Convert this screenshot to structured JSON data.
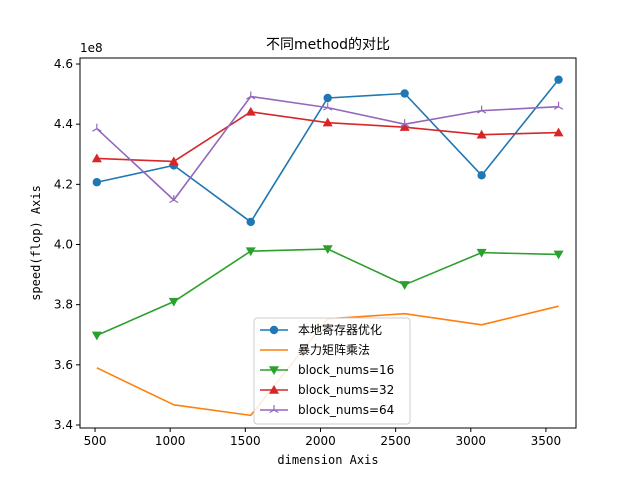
{
  "chart_data": {
    "type": "line",
    "title": "不同method的对比",
    "xlabel": "dimension Axis",
    "ylabel": "speed(flop) Axis",
    "y_offset_text": "1e8",
    "x": [
      512,
      1024,
      1536,
      2048,
      2560,
      3072,
      3584
    ],
    "xlim": [
      400,
      3700
    ],
    "ylim": [
      3.39,
      4.62
    ],
    "xticks": [
      500,
      1000,
      1500,
      2000,
      2500,
      3000,
      3500
    ],
    "yticks": [
      3.4,
      3.6,
      3.8,
      4.0,
      4.2,
      4.4,
      4.6
    ],
    "ytick_labels": [
      "3.4",
      "3.6",
      "3.8",
      "4.0",
      "4.2",
      "4.4",
      "4.6"
    ],
    "grid": false,
    "legend_position": "lower center",
    "series": [
      {
        "name": "本地寄存器优化",
        "color": "#1f77b4",
        "marker": "circle",
        "values": [
          4.207,
          4.263,
          4.075,
          4.487,
          4.502,
          4.23,
          4.548
        ]
      },
      {
        "name": "暴力矩阵乘法",
        "color": "#ff7f0e",
        "marker": "none",
        "values": [
          3.59,
          3.467,
          3.432,
          3.753,
          3.77,
          3.733,
          3.795
        ]
      },
      {
        "name": "block_nums=16",
        "color": "#2ca02c",
        "marker": "triangle-down",
        "values": [
          3.698,
          3.81,
          3.978,
          3.985,
          3.866,
          3.973,
          3.967
        ]
      },
      {
        "name": "block_nums=32",
        "color": "#d62728",
        "marker": "triangle-up",
        "values": [
          4.286,
          4.276,
          4.441,
          4.405,
          4.39,
          4.365,
          4.372
        ]
      },
      {
        "name": "block_nums=64",
        "color": "#9467bd",
        "marker": "tri",
        "values": [
          4.385,
          4.148,
          4.492,
          4.455,
          4.4,
          4.445,
          4.458
        ]
      }
    ]
  }
}
